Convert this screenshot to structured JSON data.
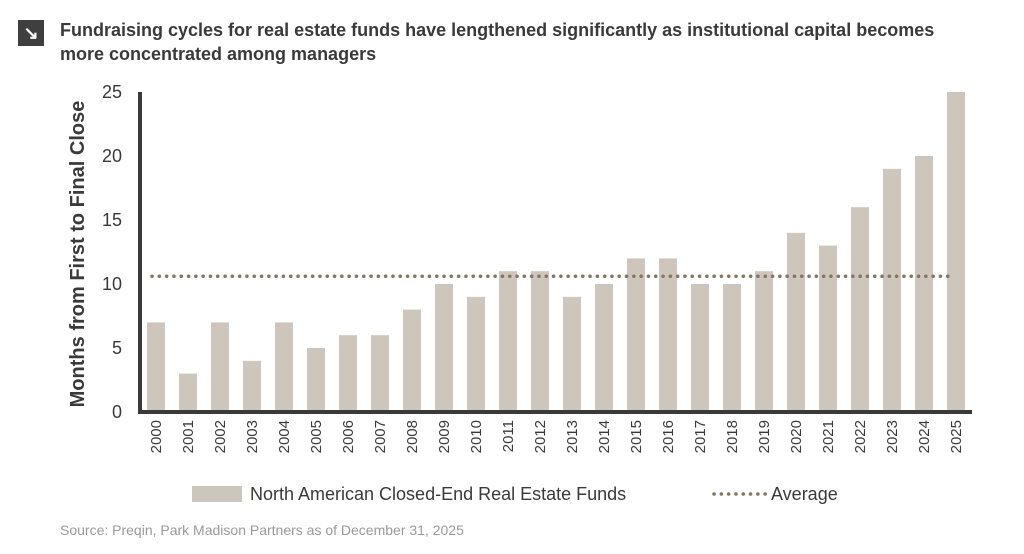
{
  "header": {
    "icon": "arrow-down-right-icon",
    "title": "Fundraising cycles for real estate funds have lengthened significantly as institutional capital becomes more concentrated among managers"
  },
  "source": "Source: Preqin, Park Madison Partners as of December 31, 2025",
  "chart_data": {
    "type": "bar",
    "title": "Fundraising cycles for real estate funds have lengthened significantly as institutional capital becomes more concentrated among managers",
    "xlabel": "",
    "ylabel": "Months from First to Final Close",
    "ylim": [
      0,
      25
    ],
    "yticks": [
      0,
      5,
      10,
      15,
      20,
      25
    ],
    "grid": false,
    "legend": "bottom",
    "categories": [
      "2000",
      "2001",
      "2002",
      "2003",
      "2004",
      "2005",
      "2006",
      "2007",
      "2008",
      "2009",
      "2010",
      "2011",
      "2012",
      "2013",
      "2014",
      "2015",
      "2016",
      "2017",
      "2018",
      "2019",
      "2020",
      "2021",
      "2022",
      "2023",
      "2024",
      "2025"
    ],
    "series": [
      {
        "name": "North American Closed-End Real Estate Funds",
        "type": "bar",
        "color": "#cdc6bc",
        "values": [
          7,
          3,
          7,
          4,
          7,
          5,
          6,
          6,
          8,
          10,
          9,
          11,
          11,
          9,
          10,
          12,
          12,
          10,
          10,
          11,
          14,
          13,
          16,
          19,
          20,
          25
        ]
      },
      {
        "name": "Average",
        "type": "line",
        "style": "dotted",
        "color": "#857560",
        "value": 10.6
      }
    ]
  }
}
